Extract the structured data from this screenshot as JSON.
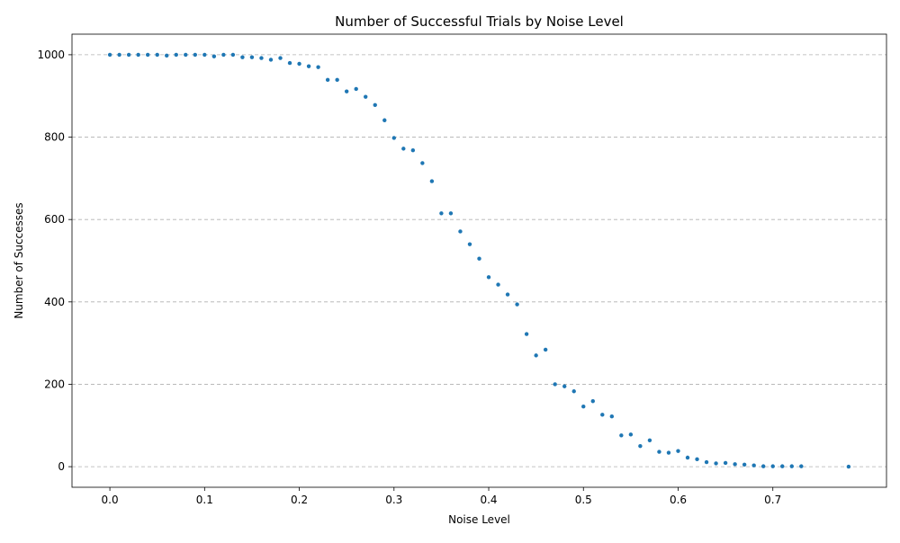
{
  "chart_data": {
    "type": "scatter",
    "title": "Number of Successful Trials by Noise Level",
    "xlabel": "Noise Level",
    "ylabel": "Number of Successes",
    "xlim": [
      -0.04,
      0.82
    ],
    "ylim": [
      -50,
      1050
    ],
    "xticks": [
      0.0,
      0.1,
      0.2,
      0.3,
      0.4,
      0.5,
      0.6,
      0.7
    ],
    "xtick_labels": [
      "0.0",
      "0.1",
      "0.2",
      "0.3",
      "0.4",
      "0.5",
      "0.6",
      "0.7"
    ],
    "yticks": [
      0,
      200,
      400,
      600,
      800,
      1000
    ],
    "ytick_labels": [
      "0",
      "200",
      "400",
      "600",
      "800",
      "1000"
    ],
    "grid": "y-dashed",
    "marker_color": "#1f77b4",
    "series": [
      {
        "x": [
          0.0,
          0.01,
          0.02,
          0.03,
          0.04,
          0.05,
          0.06,
          0.07,
          0.08,
          0.09,
          0.1,
          0.11,
          0.12,
          0.13,
          0.14,
          0.15,
          0.16,
          0.17,
          0.18,
          0.19,
          0.2,
          0.21,
          0.22,
          0.23,
          0.24,
          0.25,
          0.26,
          0.27,
          0.28,
          0.29,
          0.3,
          0.31,
          0.32,
          0.33,
          0.34,
          0.35,
          0.36,
          0.37,
          0.38,
          0.39,
          0.4,
          0.41,
          0.42,
          0.43,
          0.44,
          0.45,
          0.46,
          0.47,
          0.48,
          0.49,
          0.5,
          0.51,
          0.52,
          0.53,
          0.54,
          0.55,
          0.56,
          0.57,
          0.58,
          0.59,
          0.6,
          0.61,
          0.62,
          0.63,
          0.64,
          0.65,
          0.66,
          0.67,
          0.68,
          0.69,
          0.7,
          0.71,
          0.72,
          0.73,
          0.78
        ],
        "y": [
          1000,
          1000,
          1000,
          1000,
          1000,
          1000,
          998,
          1000,
          1000,
          1000,
          1000,
          996,
          1000,
          1000,
          994,
          994,
          992,
          988,
          992,
          980,
          978,
          972,
          970,
          939,
          939,
          911,
          917,
          898,
          878,
          841,
          798,
          772,
          768,
          737,
          693,
          615,
          615,
          571,
          540,
          505,
          460,
          442,
          418,
          394,
          322,
          270,
          284,
          200,
          195,
          183,
          146,
          159,
          126,
          122,
          76,
          78,
          50,
          64,
          36,
          34,
          38,
          22,
          18,
          11,
          8,
          9,
          6,
          5,
          3,
          1,
          1,
          1,
          1,
          1,
          0
        ]
      }
    ]
  }
}
